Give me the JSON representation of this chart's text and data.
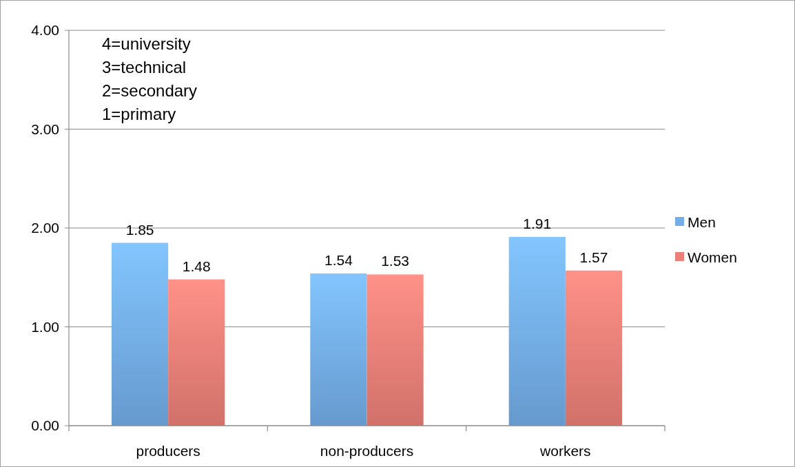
{
  "chart_data": {
    "type": "bar",
    "categories": [
      "producers",
      "non-producers",
      "workers"
    ],
    "series": [
      {
        "name": "Men",
        "color": "#74aee9",
        "values": [
          1.85,
          1.54,
          1.91
        ]
      },
      {
        "name": "Women",
        "color": "#ec8078",
        "values": [
          1.48,
          1.53,
          1.57
        ]
      }
    ],
    "ylim": [
      0,
      4
    ],
    "yticks": [
      {
        "value": 0,
        "label": "0.00"
      },
      {
        "value": 1,
        "label": "1.00"
      },
      {
        "value": 2,
        "label": "2.00"
      },
      {
        "value": 3,
        "label": "3.00"
      },
      {
        "value": 4,
        "label": "4.00"
      }
    ],
    "grid": "y",
    "legend": "right",
    "data_labels": true,
    "annotations": [
      "4=university",
      "3=technical",
      "2=secondary",
      "1=primary"
    ]
  }
}
